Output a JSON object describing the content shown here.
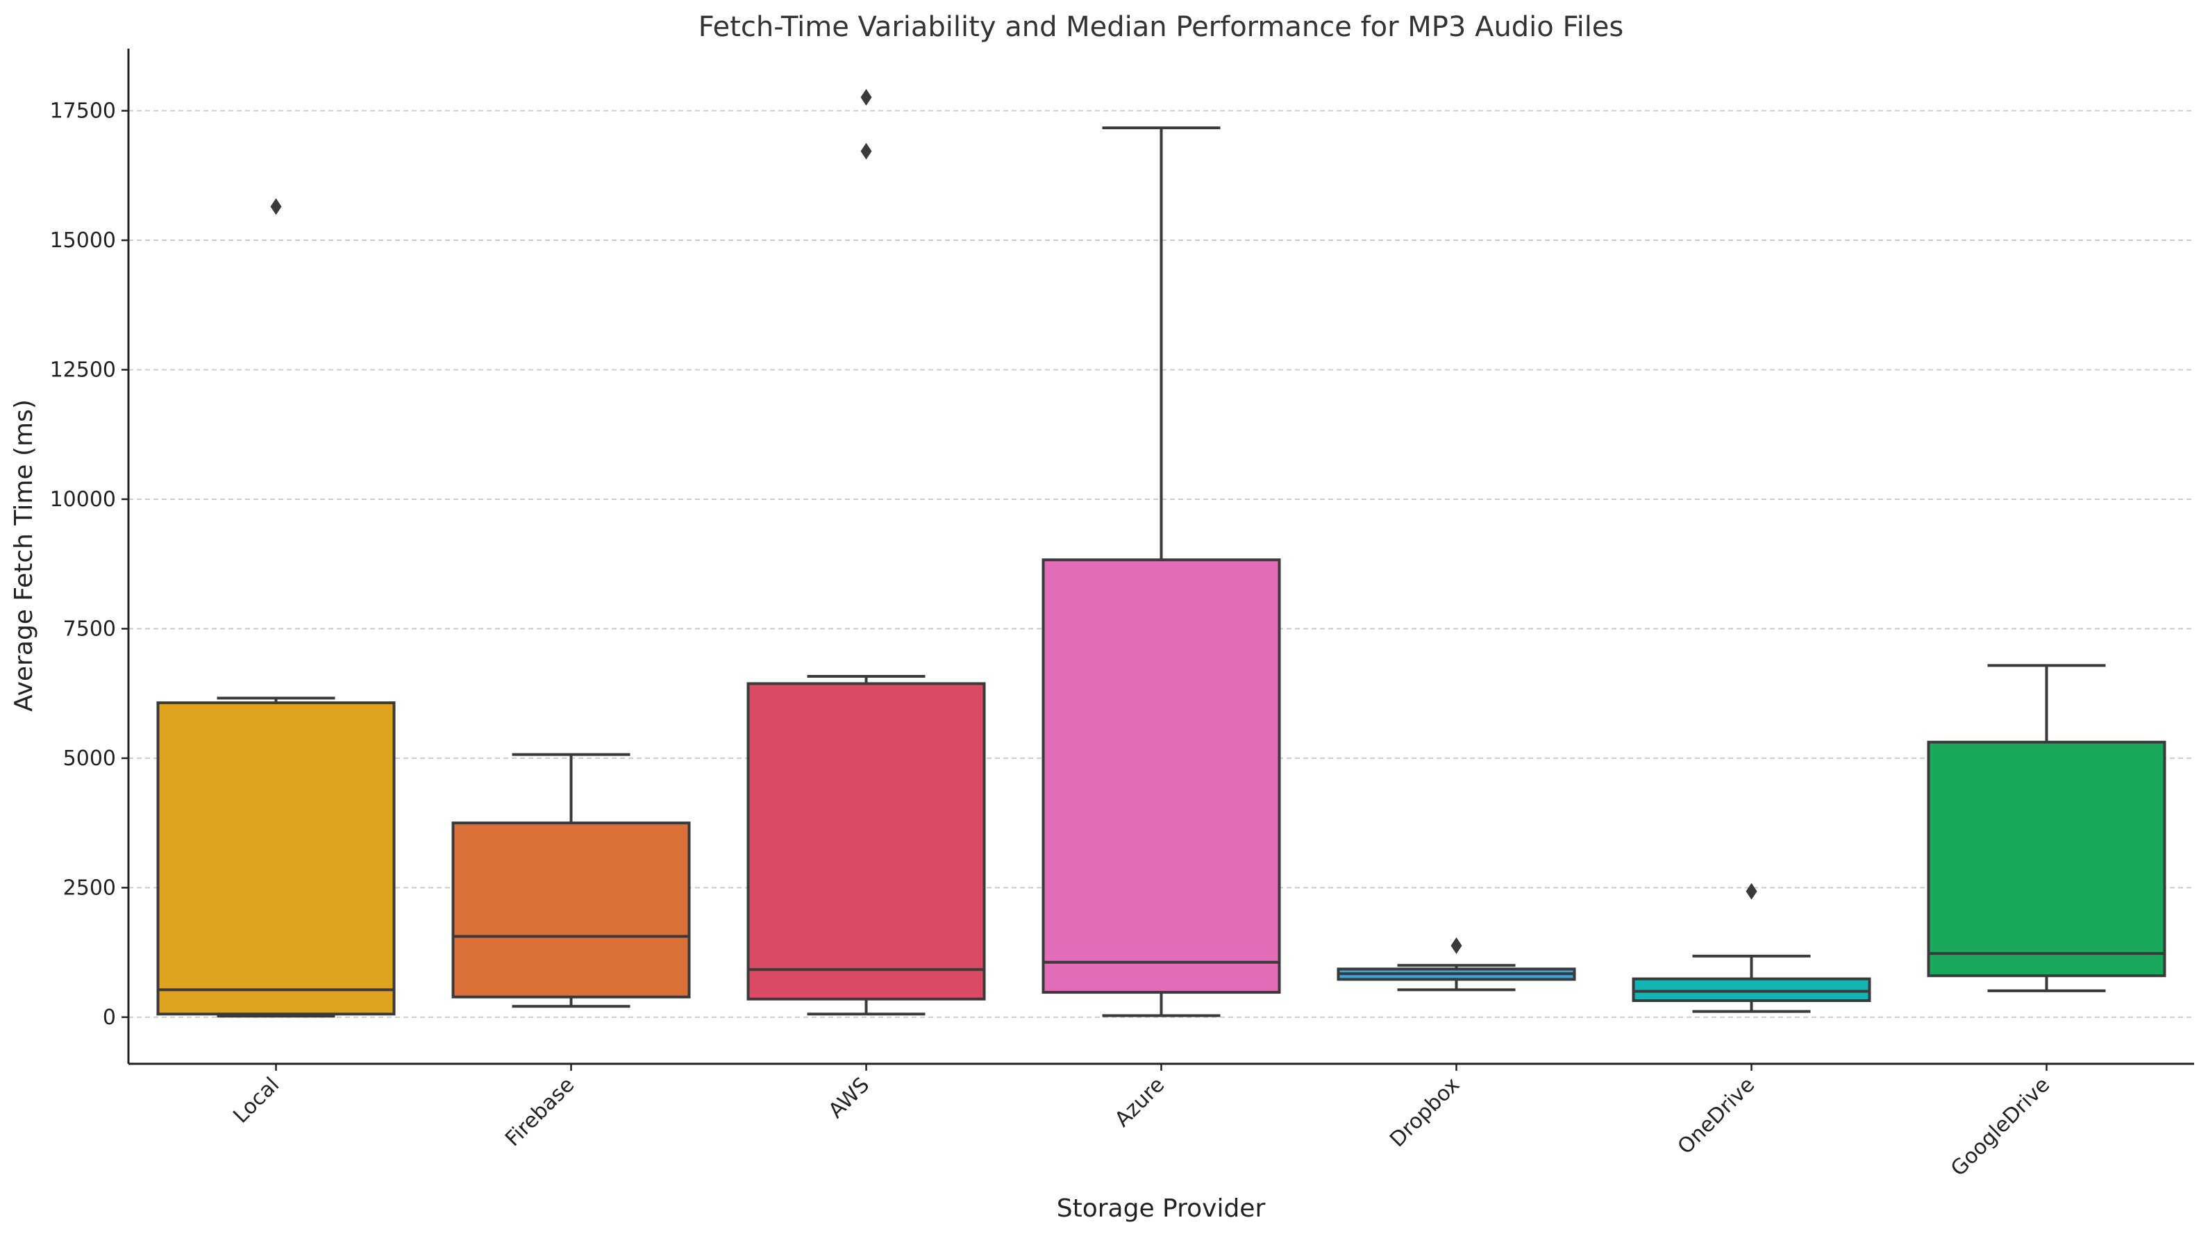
{
  "chart_data": {
    "type": "box",
    "title": "Fetch-Time Variability and Median Performance for MP3 Audio Files",
    "xlabel": "Storage Provider",
    "ylabel": "Average Fetch Time (ms)",
    "ylim": [
      -900,
      18700
    ],
    "yticks": [
      0,
      2500,
      5000,
      7500,
      10000,
      12500,
      15000,
      17500
    ],
    "grid": "y-dashed",
    "categories": [
      "Local",
      "Firebase",
      "AWS",
      "Azure",
      "Dropbox",
      "OneDrive",
      "GoogleDrive"
    ],
    "boxes": [
      {
        "category": "Local",
        "color": "#e0a320",
        "whisker_low": 20,
        "q1": 60,
        "median": 530,
        "q3": 6070,
        "whisker_high": 6160,
        "outliers": [
          15650
        ]
      },
      {
        "category": "Firebase",
        "color": "#db7038",
        "whisker_low": 210,
        "q1": 390,
        "median": 1560,
        "q3": 3750,
        "whisker_high": 5070,
        "outliers": []
      },
      {
        "category": "AWS",
        "color": "#dc4b66",
        "whisker_low": 60,
        "q1": 350,
        "median": 920,
        "q3": 6440,
        "whisker_high": 6580,
        "outliers": [
          16720,
          17760
        ]
      },
      {
        "category": "Azure",
        "color": "#e36cb8",
        "whisker_low": 30,
        "q1": 480,
        "median": 1060,
        "q3": 8830,
        "whisker_high": 17170,
        "outliers": []
      },
      {
        "category": "Dropbox",
        "color": "#3ba4dc",
        "whisker_low": 530,
        "q1": 730,
        "median": 840,
        "q3": 930,
        "whisker_high": 1000,
        "outliers": [
          1380
        ]
      },
      {
        "category": "OneDrive",
        "color": "#14b4b4",
        "whisker_low": 110,
        "q1": 320,
        "median": 500,
        "q3": 740,
        "whisker_high": 1180,
        "outliers": [
          2430
        ]
      },
      {
        "category": "GoogleDrive",
        "color": "#1aa85c",
        "whisker_low": 510,
        "q1": 800,
        "median": 1230,
        "q3": 5310,
        "whisker_high": 6790,
        "outliers": []
      }
    ]
  }
}
